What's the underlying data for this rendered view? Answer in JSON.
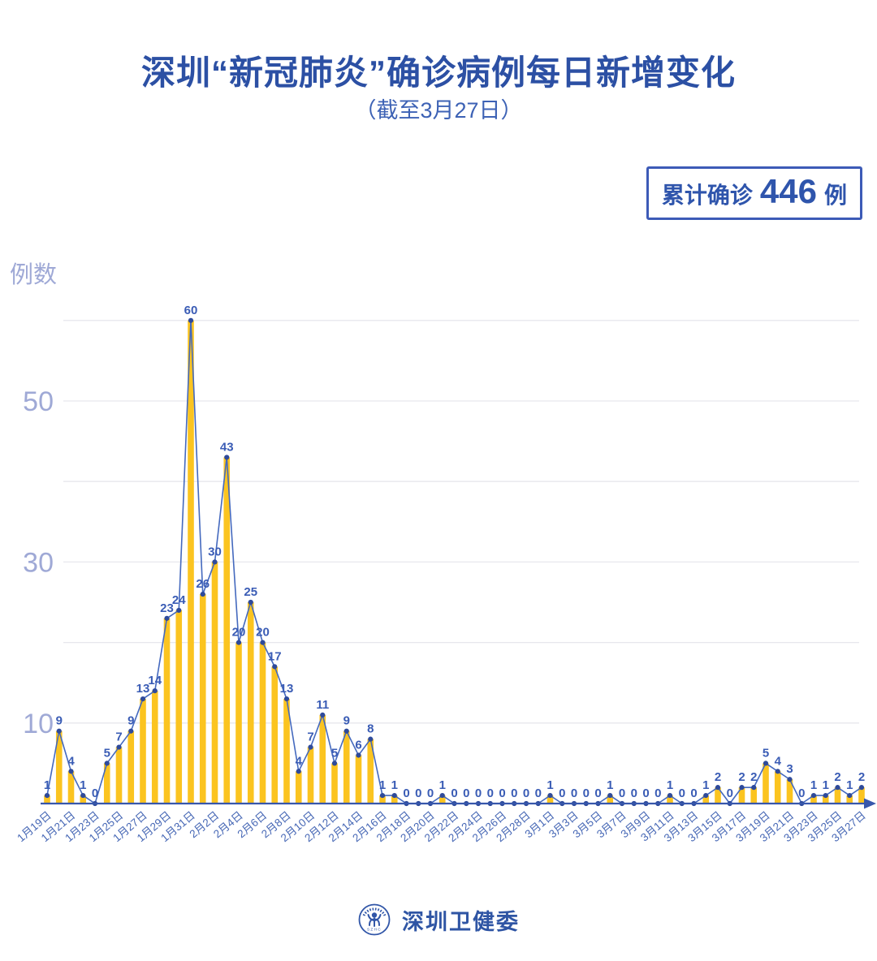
{
  "header": {
    "title": "深圳“新冠肺炎”确诊病例每日新增变化",
    "subtitle": "（截至3月27日）"
  },
  "badge": {
    "prefix": "累计确诊",
    "value": "446",
    "suffix": "例"
  },
  "footer": {
    "label": "深圳卫健委",
    "logo_text": "SZHC"
  },
  "chart_data": {
    "type": "bar",
    "title": "深圳“新冠肺炎”确诊病例每日新增变化（截至3月27日）",
    "ylabel": "例数",
    "ylim": [
      0,
      62
    ],
    "grid": true,
    "gridlines": [
      10,
      20,
      30,
      40,
      50,
      60
    ],
    "y_ticks_labeled": [
      10,
      30,
      50
    ],
    "label_every": 2,
    "categories": [
      "1月19日",
      "1月20日",
      "1月21日",
      "1月22日",
      "1月23日",
      "1月24日",
      "1月25日",
      "1月26日",
      "1月27日",
      "1月28日",
      "1月29日",
      "1月30日",
      "1月31日",
      "2月1日",
      "2月2日",
      "2月3日",
      "2月4日",
      "2月5日",
      "2月6日",
      "2月7日",
      "2月8日",
      "2月9日",
      "2月10日",
      "2月11日",
      "2月12日",
      "2月13日",
      "2月14日",
      "2月15日",
      "2月16日",
      "2月17日",
      "2月18日",
      "2月19日",
      "2月20日",
      "2月21日",
      "2月22日",
      "2月23日",
      "2月24日",
      "2月25日",
      "2月26日",
      "2月27日",
      "2月28日",
      "2月29日",
      "3月1日",
      "3月2日",
      "3月3日",
      "3月4日",
      "3月5日",
      "3月6日",
      "3月7日",
      "3月8日",
      "3月9日",
      "3月10日",
      "3月11日",
      "3月12日",
      "3月13日",
      "3月14日",
      "3月15日",
      "3月16日",
      "3月17日",
      "3月18日",
      "3月19日",
      "3月20日",
      "3月21日",
      "3月22日",
      "3月23日",
      "3月24日",
      "3月25日",
      "3月26日",
      "3月27日"
    ],
    "values": [
      1,
      9,
      4,
      1,
      0,
      5,
      7,
      9,
      13,
      14,
      23,
      24,
      60,
      26,
      30,
      43,
      20,
      25,
      20,
      17,
      13,
      4,
      7,
      11,
      5,
      9,
      6,
      8,
      1,
      1,
      0,
      0,
      0,
      1,
      0,
      0,
      0,
      0,
      0,
      0,
      0,
      0,
      1,
      0,
      0,
      0,
      0,
      1,
      0,
      0,
      0,
      0,
      1,
      0,
      0,
      1,
      2,
      0,
      2,
      2,
      5,
      4,
      3,
      0,
      1,
      1,
      2,
      1,
      2
    ],
    "total": 446,
    "colors": {
      "bar": "#FBC420",
      "line": "#4469BE",
      "marker": "#2E4A9B",
      "value_label": "#3A5CB5",
      "axis": "#3757AC",
      "date_label": "#4667B5",
      "y_tick_label": "#9FA9D6",
      "gridline": "#E7E7ED",
      "title": "#2C50A4"
    }
  }
}
